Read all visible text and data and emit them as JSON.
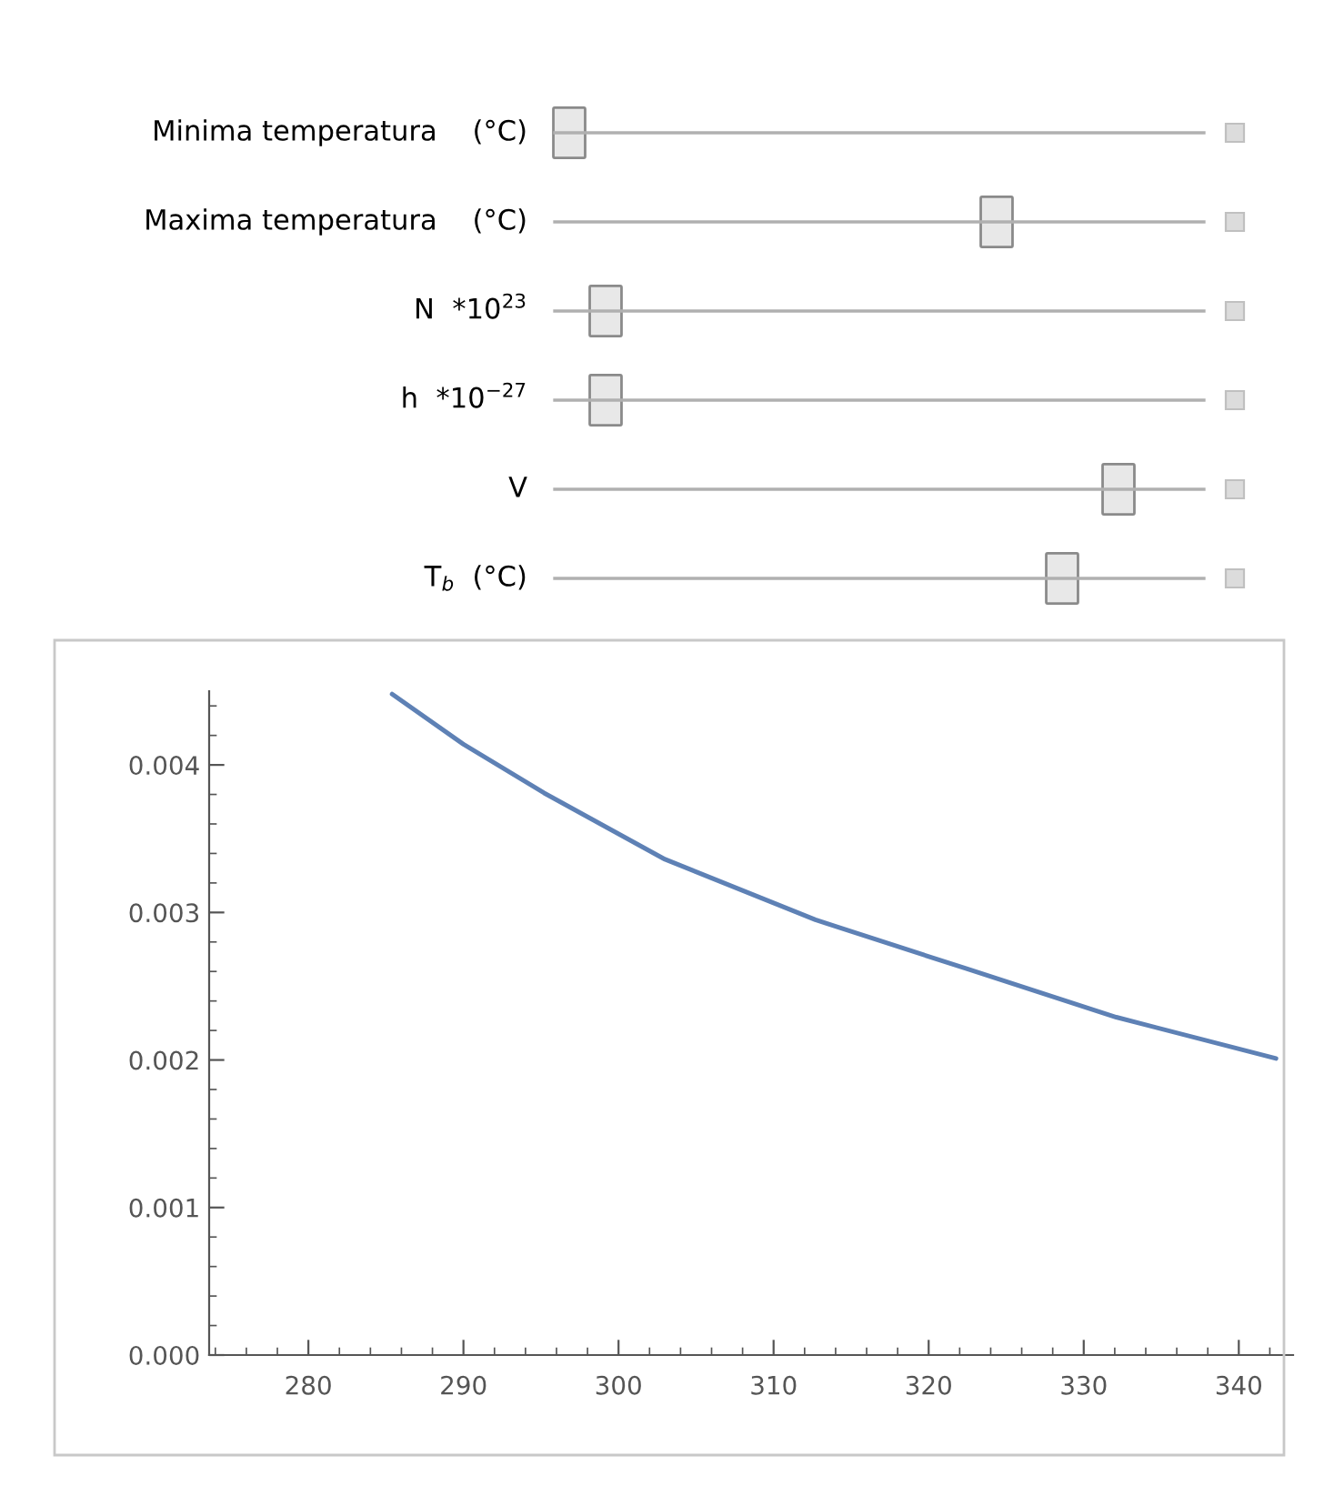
{
  "chart_data": {
    "type": "line",
    "x": [
      285.4,
      290,
      295.2,
      303.0,
      312.7,
      322.4,
      332.1,
      342.4
    ],
    "series": [
      {
        "color": "#5e81b5",
        "values": [
          0.00448,
          0.00414,
          0.00381,
          0.00336,
          0.00295,
          0.00262,
          0.00229,
          0.00201
        ]
      }
    ],
    "xlim": [
      273.6,
      343.5
    ],
    "ylim": [
      0,
      0.0045
    ],
    "xticks": [
      280,
      290,
      300,
      310,
      320,
      330,
      340
    ],
    "yticks": [
      {
        "value": 0,
        "label": "0.000"
      },
      {
        "value": 0.001,
        "label": "0.001"
      },
      {
        "value": 0.002,
        "label": "0.002"
      },
      {
        "value": 0.003,
        "label": "0.003"
      },
      {
        "value": 0.004,
        "label": "0.004"
      }
    ],
    "grid": false,
    "annotations": [
      "Minima temperatura    (°C)",
      "Maxima temperatura    (°C)",
      "N  *10$^{23}$",
      "h  *10$^{−27}$",
      "V",
      "T$_{b}$  (°C)"
    ]
  }
}
